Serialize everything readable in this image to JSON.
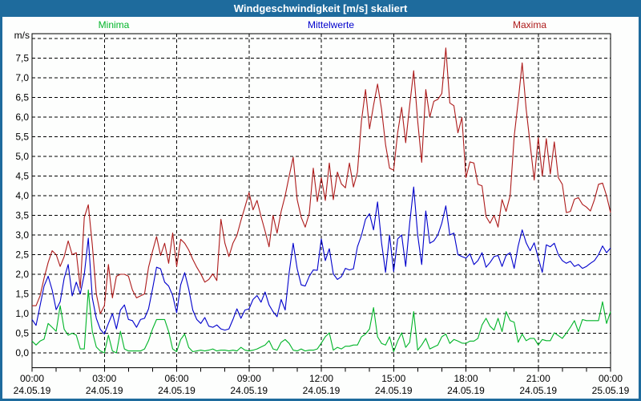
{
  "window": {
    "title": "Windgeschwindigkeit [m/s] skaliert",
    "titlebar_bg": "#1e6b9d",
    "border_color": "#1e6b9d",
    "content_bg": "#fdfefd"
  },
  "chart_data": {
    "type": "line",
    "title": "Windgeschwindigkeit [m/s] skaliert",
    "ylabel": "m/s",
    "ylim": [
      0,
      8
    ],
    "ytick_step": 0.5,
    "grid": "dashed",
    "legend_position": "top",
    "y_tick_labels": [
      "0,0",
      "0,5",
      "1,0",
      "1,5",
      "2,0",
      "2,5",
      "3,0",
      "3,5",
      "4,0",
      "4,5",
      "5,0",
      "5,5",
      "6,0",
      "6,5",
      "7,0",
      "7,5"
    ],
    "x_ticks": [
      {
        "time": "00:00",
        "date": "24.05.19"
      },
      {
        "time": "03:00",
        "date": "24.05.19"
      },
      {
        "time": "06:00",
        "date": "24.05.19"
      },
      {
        "time": "09:00",
        "date": "24.05.19"
      },
      {
        "time": "12:00",
        "date": "24.05.19"
      },
      {
        "time": "15:00",
        "date": "24.05.19"
      },
      {
        "time": "18:00",
        "date": "24.05.19"
      },
      {
        "time": "21:00",
        "date": "24.05.19"
      },
      {
        "time": "00:00",
        "date": "25.05.19"
      }
    ],
    "x_interval_minutes": 10,
    "x_minor_tick_hours": 1,
    "series": [
      {
        "name": "Minima",
        "color": "#00b428",
        "values": [
          0.3,
          0.2,
          0.3,
          0.35,
          0.75,
          0.65,
          0.55,
          1.2,
          0.6,
          0.45,
          0.5,
          0.45,
          0.1,
          0.1,
          1.6,
          0.55,
          0.15,
          0.05,
          0.0,
          0.45,
          0.05,
          0.0,
          0.55,
          0.1,
          0.05,
          0.05,
          0.05,
          0.05,
          0.1,
          0.31,
          0.61,
          0.85,
          0.85,
          0.85,
          0.54,
          0.1,
          0.03,
          0.34,
          0.48,
          0.14,
          0.03,
          0.05,
          0.07,
          0.05,
          0.07,
          0.1,
          0.05,
          0.07,
          0.07,
          0.05,
          0.07,
          0.05,
          0.14,
          0.07,
          0.05,
          0.07,
          0.1,
          0.15,
          0.2,
          0.31,
          0.1,
          0.07,
          0.27,
          0.34,
          0.24,
          0.07,
          0.05,
          0.1,
          0.05,
          0.07,
          0.07,
          0.1,
          0.25,
          0.41,
          0.51,
          0.07,
          0.14,
          0.1,
          0.17,
          0.17,
          0.2,
          0.2,
          0.41,
          0.48,
          0.61,
          1.15,
          0.41,
          0.24,
          0.2,
          0.41,
          0.03,
          0.3,
          0.51,
          0.14,
          0.27,
          1.05,
          0.07,
          0.2,
          0.37,
          0.1,
          0.15,
          0.2,
          0.41,
          0.48,
          0.24,
          0.34,
          0.3,
          0.25,
          0.24,
          0.3,
          0.3,
          0.37,
          0.71,
          0.88,
          0.68,
          0.58,
          0.88,
          0.54,
          1.05,
          0.82,
          0.78,
          0.27,
          0.48,
          0.31,
          0.37,
          0.37,
          0.2,
          0.34,
          0.31,
          0.31,
          0.51,
          0.44,
          0.37,
          0.5,
          0.65,
          0.82,
          0.54,
          0.85,
          0.82,
          0.82,
          0.82,
          0.82,
          1.3,
          0.75,
          1.05
        ]
      },
      {
        "name": "Mittelwerte",
        "color": "#0000cc",
        "values": [
          0.85,
          0.7,
          1.2,
          1.7,
          1.95,
          1.6,
          1.1,
          1.3,
          1.9,
          2.25,
          1.45,
          1.8,
          1.5,
          2.0,
          2.92,
          1.4,
          0.88,
          0.6,
          0.48,
          0.75,
          1.0,
          0.61,
          1.09,
          1.22,
          0.85,
          0.82,
          0.65,
          0.85,
          0.88,
          1.12,
          1.63,
          2.18,
          2.14,
          1.8,
          1.7,
          1.46,
          1.02,
          1.73,
          2.04,
          1.63,
          1.09,
          0.85,
          0.75,
          0.9,
          0.68,
          0.65,
          0.71,
          0.61,
          0.58,
          0.61,
          0.85,
          1.12,
          0.88,
          1.09,
          1.12,
          1.36,
          1.46,
          1.29,
          1.55,
          1.22,
          1.05,
          0.92,
          1.36,
          1.09,
          2.04,
          2.79,
          2.14,
          1.73,
          1.7,
          1.95,
          2.11,
          2.1,
          2.9,
          2.35,
          2.65,
          2.01,
          1.87,
          1.94,
          2.15,
          2.11,
          2.14,
          2.7,
          2.99,
          3.4,
          3.54,
          3.13,
          3.84,
          2.8,
          2.05,
          3.0,
          2.07,
          2.9,
          3.0,
          2.2,
          3.3,
          4.22,
          3.0,
          2.25,
          3.61,
          2.79,
          2.85,
          3.0,
          3.3,
          3.74,
          3.0,
          3.05,
          2.5,
          2.45,
          2.41,
          2.52,
          2.25,
          2.35,
          2.55,
          2.18,
          2.3,
          2.45,
          2.48,
          2.2,
          2.48,
          2.55,
          2.15,
          2.72,
          3.13,
          2.8,
          2.6,
          2.8,
          2.41,
          2.05,
          2.75,
          2.7,
          2.79,
          2.5,
          2.35,
          2.28,
          2.33,
          2.2,
          2.25,
          2.15,
          2.2,
          2.28,
          2.35,
          2.5,
          2.72,
          2.55,
          2.67
        ]
      },
      {
        "name": "Maxima",
        "color": "#ad1a1a",
        "values": [
          1.2,
          1.2,
          1.45,
          1.9,
          2.3,
          2.6,
          2.5,
          2.2,
          2.45,
          2.85,
          2.5,
          2.55,
          1.65,
          3.45,
          3.77,
          2.75,
          1.5,
          1.0,
          1.2,
          2.25,
          1.4,
          1.95,
          2.0,
          2.0,
          1.95,
          1.6,
          1.4,
          1.45,
          1.5,
          2.18,
          2.59,
          2.96,
          2.48,
          2.79,
          2.28,
          3.05,
          2.2,
          2.89,
          2.79,
          2.62,
          2.38,
          2.18,
          2.01,
          1.8,
          1.87,
          2.01,
          1.84,
          3.4,
          2.79,
          2.45,
          2.79,
          2.99,
          3.37,
          3.71,
          4.08,
          3.64,
          3.88,
          3.47,
          3.1,
          2.7,
          3.5,
          3.05,
          3.6,
          4.0,
          4.5,
          4.98,
          3.9,
          3.45,
          3.2,
          3.55,
          4.7,
          3.85,
          4.46,
          3.88,
          4.83,
          3.9,
          4.6,
          4.3,
          4.2,
          4.83,
          4.22,
          4.6,
          5.9,
          6.7,
          5.7,
          6.3,
          6.84,
          6.2,
          5.3,
          4.7,
          4.65,
          5.6,
          6.25,
          5.35,
          6.3,
          7.18,
          5.9,
          4.85,
          6.7,
          6.0,
          6.4,
          6.45,
          6.6,
          7.76,
          6.36,
          6.29,
          5.6,
          5.99,
          4.46,
          4.86,
          4.83,
          4.29,
          4.25,
          3.47,
          3.3,
          3.5,
          3.2,
          3.9,
          3.6,
          4.0,
          5.5,
          6.4,
          7.38,
          6.2,
          5.3,
          4.4,
          5.48,
          4.5,
          5.45,
          4.55,
          5.37,
          4.46,
          4.29,
          3.57,
          3.6,
          3.91,
          3.95,
          3.78,
          3.71,
          3.61,
          3.9,
          4.29,
          4.32,
          4.0,
          3.57
        ]
      }
    ]
  }
}
